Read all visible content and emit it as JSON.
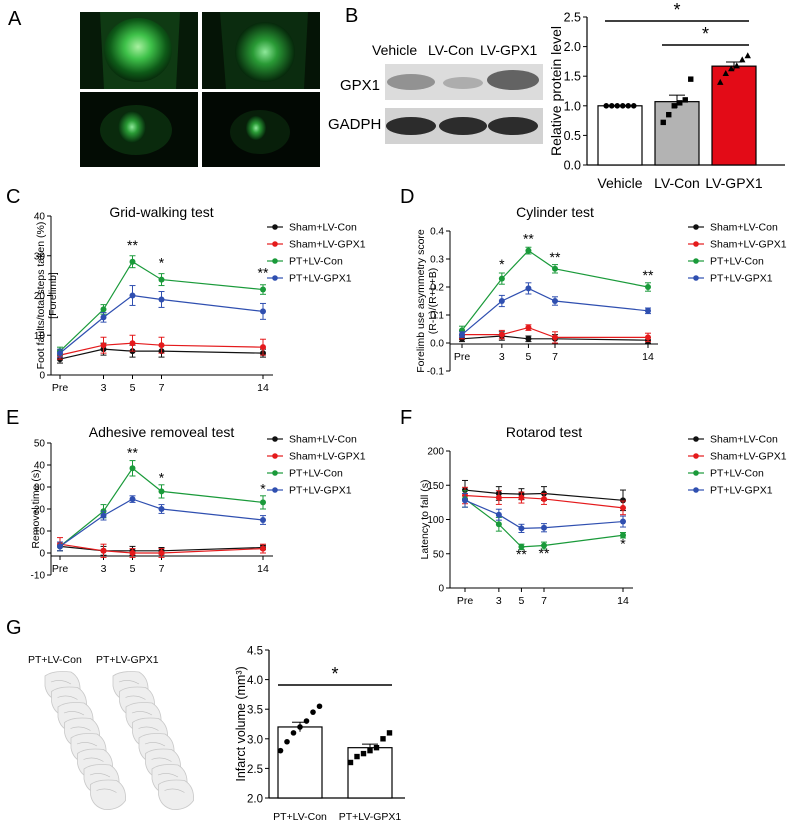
{
  "panels": {
    "A": "A",
    "B": "B",
    "C": "C",
    "D": "D",
    "E": "E",
    "F": "F",
    "G": "G"
  },
  "panel_a": {
    "tiles": 4
  },
  "panel_b": {
    "lanes": [
      "Vehicle",
      "LV-Con",
      "LV-GPX1"
    ],
    "rows": [
      "GPX1",
      "GADPH"
    ]
  },
  "panel_g": {
    "labels": [
      "PT+LV-Con",
      "PT+LV-GPX1"
    ]
  },
  "chart_data": [
    {
      "id": "B",
      "type": "bar",
      "categories": [
        "Vehicle",
        "LV-Con",
        "LV-GPX1"
      ],
      "values": [
        1.0,
        1.07,
        1.67
      ],
      "errors": [
        0.0,
        0.11,
        0.07
      ],
      "colors": [
        "#ffffff",
        "#b3b3b3",
        "#e30b17"
      ],
      "points": [
        [
          1,
          1,
          1,
          1,
          1,
          1
        ],
        [
          0.72,
          0.85,
          1.0,
          1.05,
          1.1,
          1.45
        ],
        [
          1.4,
          1.55,
          1.63,
          1.68,
          1.78,
          1.85
        ]
      ],
      "ylabel": "Relative protein level",
      "ylim": [
        0,
        2.5
      ],
      "yticks": [
        "0.0",
        "0.5",
        "1.0",
        "1.5",
        "2.0",
        "2.5"
      ],
      "significance": [
        {
          "from": "Vehicle",
          "to": "LV-GPX1",
          "label": "*"
        },
        {
          "from": "LV-Con",
          "to": "LV-GPX1",
          "label": "*"
        }
      ]
    },
    {
      "id": "C",
      "type": "line",
      "title": "Grid-walking test",
      "ylabel_lines": [
        "Foot faults/total steps taken (%)",
        "[Forelimb]"
      ],
      "ylim": [
        0,
        40
      ],
      "yticks": [
        "0",
        "10",
        "20",
        "30",
        "40"
      ],
      "x": [
        0,
        3,
        5,
        7,
        14
      ],
      "xticks": [
        "Pre",
        "3",
        "5",
        "7",
        "14"
      ],
      "series": [
        {
          "name": "Sham+LV-Con",
          "color": "#111111",
          "values": [
            4,
            6.5,
            6,
            6,
            5.5
          ],
          "errors": [
            1,
            1.5,
            1.5,
            1.5,
            1
          ]
        },
        {
          "name": "Sham+LV-GPX1",
          "color": "#e41a1c",
          "values": [
            5,
            7.5,
            8,
            7.5,
            7
          ],
          "errors": [
            1,
            2,
            2,
            2,
            2
          ]
        },
        {
          "name": "PT+LV-Con",
          "color": "#1a9a3a",
          "values": [
            6,
            16.5,
            28.5,
            24,
            21.5
          ],
          "errors": [
            1,
            1.2,
            1.5,
            1.5,
            1.2
          ]
        },
        {
          "name": "PT+LV-GPX1",
          "color": "#2f4fb0",
          "values": [
            5.5,
            14.5,
            20,
            19,
            16
          ],
          "errors": [
            1,
            1.2,
            2.5,
            2,
            2
          ]
        }
      ],
      "stars": [
        {
          "x": 5,
          "y": 31.5,
          "text": "**"
        },
        {
          "x": 7,
          "y": 27,
          "text": "*"
        },
        {
          "x": 14,
          "y": 24.5,
          "text": "**"
        }
      ]
    },
    {
      "id": "D",
      "type": "line",
      "title": "Cylinder test",
      "ylabel_lines": [
        "Forelimb use asymmetry score",
        "(R-L)/(R+L+B)"
      ],
      "ylim": [
        -0.1,
        0.4
      ],
      "yticks": [
        "-0.1",
        "0.0",
        "0.1",
        "0.2",
        "0.3",
        "0.4"
      ],
      "x": [
        0,
        3,
        5,
        7,
        14
      ],
      "xticks": [
        "Pre",
        "3",
        "5",
        "7",
        "14"
      ],
      "series": [
        {
          "name": "Sham+LV-Con",
          "color": "#111111",
          "values": [
            0.015,
            0.025,
            0.015,
            0.015,
            0.01
          ],
          "errors": [
            0.01,
            0.015,
            0.01,
            0.015,
            0.01
          ]
        },
        {
          "name": "Sham+LV-GPX1",
          "color": "#e41a1c",
          "values": [
            0.03,
            0.03,
            0.055,
            0.02,
            0.02
          ],
          "errors": [
            0.015,
            0.015,
            0.01,
            0.02,
            0.015
          ]
        },
        {
          "name": "PT+LV-Con",
          "color": "#1a9a3a",
          "values": [
            0.045,
            0.23,
            0.33,
            0.265,
            0.2
          ],
          "errors": [
            0.015,
            0.02,
            0.012,
            0.015,
            0.015
          ]
        },
        {
          "name": "PT+LV-GPX1",
          "color": "#2f4fb0",
          "values": [
            0.03,
            0.15,
            0.195,
            0.15,
            0.115
          ],
          "errors": [
            0.01,
            0.02,
            0.02,
            0.015,
            0.01
          ]
        }
      ],
      "stars": [
        {
          "x": 3,
          "y": 0.265,
          "text": "*"
        },
        {
          "x": 5,
          "y": 0.355,
          "text": "**"
        },
        {
          "x": 7,
          "y": 0.29,
          "text": "**"
        },
        {
          "x": 14,
          "y": 0.225,
          "text": "**"
        }
      ]
    },
    {
      "id": "E",
      "type": "line",
      "title": "Adhesive removeal test",
      "ylabel": "Removel time (s)",
      "ylim": [
        -10,
        50
      ],
      "yticks": [
        "-10",
        "0",
        "10",
        "20",
        "30",
        "40",
        "50"
      ],
      "x": [
        0,
        3,
        5,
        7,
        14
      ],
      "xticks": [
        "Pre",
        "3",
        "5",
        "7",
        "14"
      ],
      "series": [
        {
          "name": "Sham+LV-Con",
          "color": "#111111",
          "values": [
            3,
            1,
            1,
            1,
            2.5
          ],
          "errors": [
            2,
            2,
            2,
            1.5,
            1
          ]
        },
        {
          "name": "Sham+LV-GPX1",
          "color": "#e41a1c",
          "values": [
            4,
            1,
            0,
            0,
            2
          ],
          "errors": [
            3,
            3,
            2,
            2,
            2
          ]
        },
        {
          "name": "PT+LV-Con",
          "color": "#1a9a3a",
          "values": [
            3,
            19,
            38.5,
            28,
            23
          ],
          "errors": [
            2,
            3,
            3.5,
            3,
            3
          ]
        },
        {
          "name": "PT+LV-GPX1",
          "color": "#2f4fb0",
          "values": [
            3,
            17,
            24.5,
            20,
            15
          ],
          "errors": [
            2,
            2,
            1.5,
            2,
            2
          ]
        }
      ],
      "stars": [
        {
          "x": 5,
          "y": 43.5,
          "text": "**"
        },
        {
          "x": 7,
          "y": 32,
          "text": "*"
        },
        {
          "x": 14,
          "y": 27,
          "text": "*"
        }
      ]
    },
    {
      "id": "F",
      "type": "line",
      "title": "Rotarod test",
      "ylabel": "Latency to fall  (s)",
      "ylim": [
        0,
        200
      ],
      "yticks": [
        "0",
        "50",
        "100",
        "150",
        "200"
      ],
      "x": [
        0,
        3,
        5,
        7,
        14
      ],
      "xticks": [
        "Pre",
        "3",
        "5",
        "7",
        "14"
      ],
      "series": [
        {
          "name": "Sham+LV-Con",
          "color": "#111111",
          "values": [
            143,
            138,
            137,
            138,
            128
          ],
          "errors": [
            14,
            10,
            8,
            10,
            15
          ]
        },
        {
          "name": "Sham+LV-GPX1",
          "color": "#e41a1c",
          "values": [
            135,
            132,
            132,
            130,
            117
          ],
          "errors": [
            12,
            10,
            8,
            8,
            10
          ]
        },
        {
          "name": "PT+LV-Con",
          "color": "#1a9a3a",
          "values": [
            130,
            93,
            60,
            62,
            77
          ],
          "errors": [
            12,
            10,
            4,
            5,
            4
          ]
        },
        {
          "name": "PT+LV-GPX1",
          "color": "#2f4fb0",
          "values": [
            128,
            107,
            87,
            88,
            97
          ],
          "errors": [
            10,
            8,
            6,
            6,
            8
          ]
        }
      ],
      "stars": [
        {
          "x": 5,
          "y": 42,
          "text": "**"
        },
        {
          "x": 7,
          "y": 44,
          "text": "**"
        },
        {
          "x": 14,
          "y": 58,
          "text": "*"
        }
      ]
    },
    {
      "id": "G",
      "type": "bar",
      "categories": [
        "PT+LV-Con",
        "PT+LV-GPX1"
      ],
      "values": [
        3.2,
        2.85
      ],
      "errors": [
        0.08,
        0.06
      ],
      "colors": [
        "#ffffff",
        "#ffffff"
      ],
      "points": [
        [
          2.8,
          2.95,
          3.1,
          3.2,
          3.3,
          3.45,
          3.55
        ],
        [
          2.6,
          2.7,
          2.75,
          2.8,
          2.85,
          3.0,
          3.1
        ]
      ],
      "ylabel": "Infarct volume (mm³)",
      "ylim": [
        2.0,
        4.5
      ],
      "yticks": [
        "2.0",
        "2.5",
        "3.0",
        "3.5",
        "4.0",
        "4.5"
      ],
      "significance": [
        {
          "from": "PT+LV-Con",
          "to": "PT+LV-GPX1",
          "label": "*"
        }
      ]
    }
  ]
}
